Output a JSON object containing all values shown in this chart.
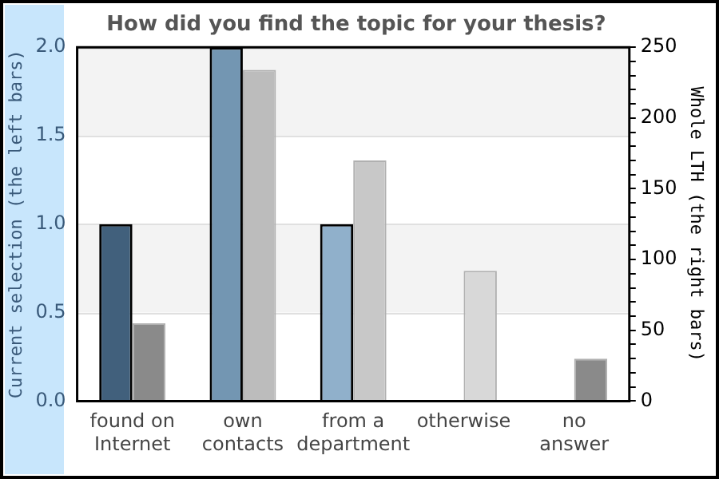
{
  "chart_data": {
    "type": "bar",
    "title": "How did you find the topic for your thesis?",
    "ylabel": "Current selection (the left bars)",
    "y2label": "Whole LTH (the right bars)",
    "categories": [
      "found on Internet",
      "own contacts",
      "from a department",
      "otherwise",
      "no answer"
    ],
    "series": [
      {
        "values": [
          1,
          2,
          1,
          0,
          0
        ],
        "colors": [
          "#41607c",
          "#7396b2",
          "#90b0cb",
          "#a9c4dc",
          "#a9c4dc"
        ]
      },
      {
        "values": [
          55,
          234,
          170,
          92,
          30
        ],
        "axis": "y2",
        "colors": [
          "#8a8a8a",
          "#bcbcbc",
          "#c8c8c8",
          "#d8d8d8",
          "#8a8a8a"
        ]
      }
    ],
    "ylim": [
      0,
      2
    ],
    "yticks": [
      {
        "value": 0,
        "label": "0.0"
      },
      {
        "value": 0.5,
        "label": "0.5"
      },
      {
        "value": 1,
        "label": "1.0"
      },
      {
        "value": 1.5,
        "label": "1.5"
      },
      {
        "value": 2,
        "label": "2.0"
      }
    ],
    "y2lim": [
      0,
      250
    ],
    "y2ticks": [
      0,
      {
        "value": 10,
        "label": null
      },
      {
        "value": 20,
        "label": null
      },
      {
        "value": 30,
        "label": null
      },
      {
        "value": 40,
        "label": null
      },
      50,
      {
        "value": 60,
        "label": null
      },
      {
        "value": 70,
        "label": null
      },
      {
        "value": 80,
        "label": null
      },
      {
        "value": 90,
        "label": null
      },
      100,
      {
        "value": 110,
        "label": null
      },
      {
        "value": 120,
        "label": null
      },
      {
        "value": 130,
        "label": null
      },
      {
        "value": 140,
        "label": null
      },
      150,
      {
        "value": 160,
        "label": null
      },
      {
        "value": 170,
        "label": null
      },
      {
        "value": 180,
        "label": null
      },
      {
        "value": 190,
        "label": null
      },
      200,
      {
        "value": 210,
        "label": null
      },
      {
        "value": 220,
        "label": null
      },
      {
        "value": 230,
        "label": null
      },
      {
        "value": 240,
        "label": null
      },
      250
    ],
    "grid": "y",
    "legend": false
  }
}
